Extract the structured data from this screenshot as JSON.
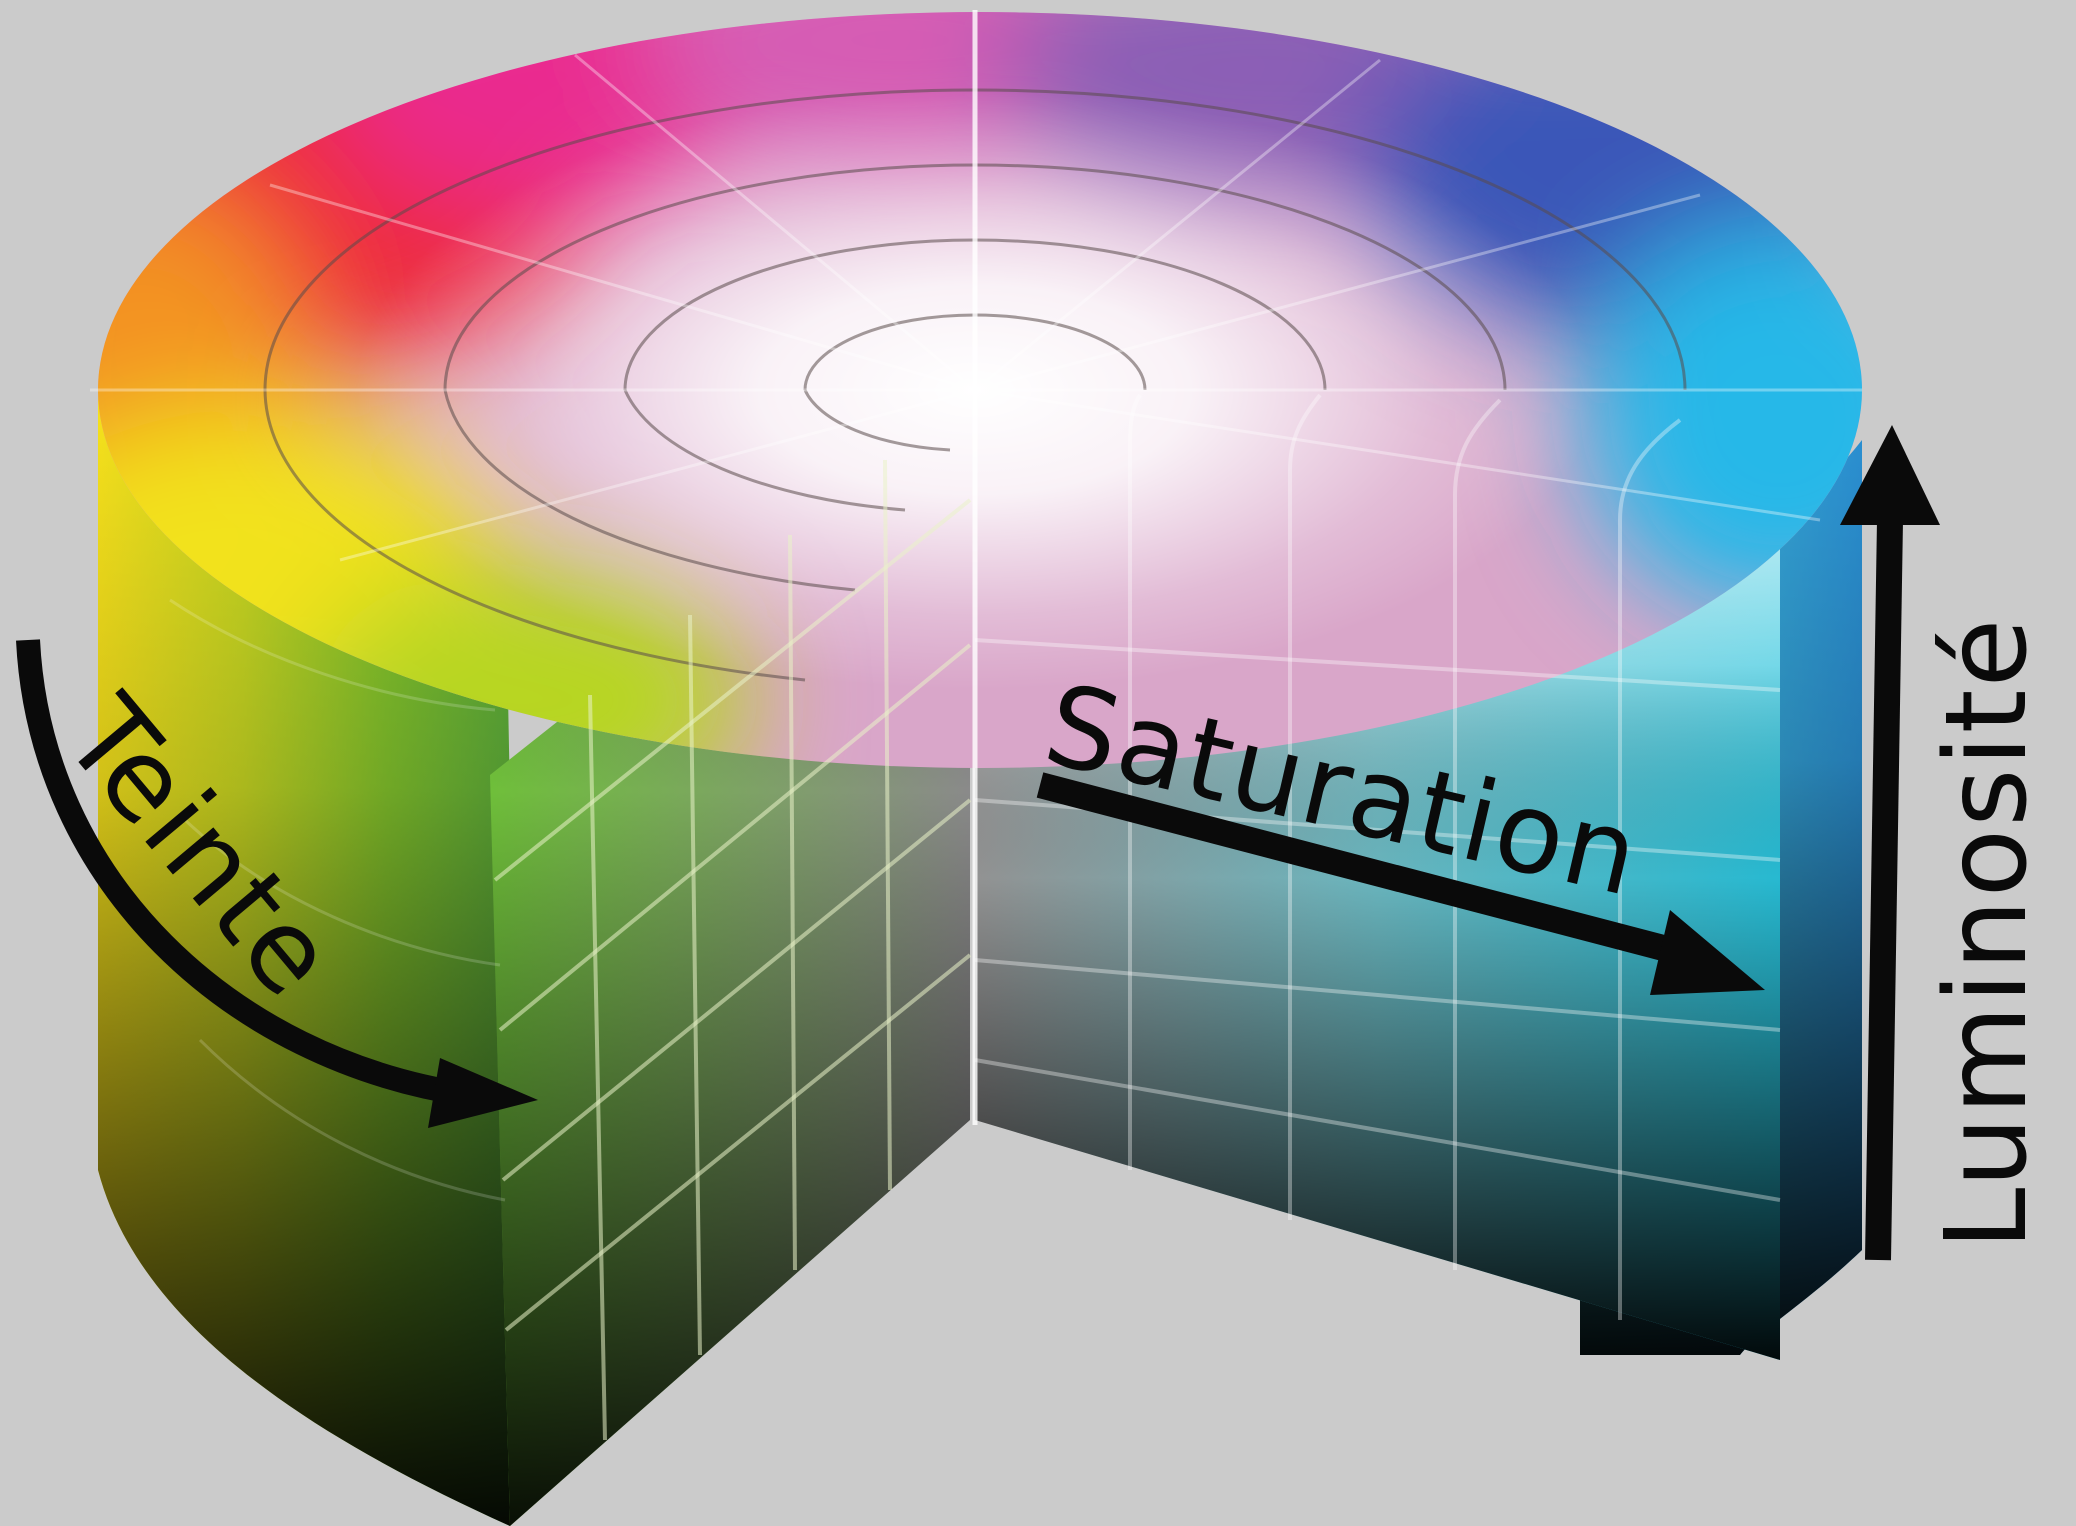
{
  "labels": {
    "hue": "Teinte",
    "saturation": "Saturation",
    "lightness": "Luminosité"
  },
  "colors": {
    "background": "#cbcbcb",
    "arrow": "#0a0a0a",
    "red": "#ff0000",
    "yellow": "#ffff00",
    "green": "#00ff00",
    "cyan": "#00ffff",
    "blue": "#0000ff",
    "magenta": "#ff00ff"
  }
}
